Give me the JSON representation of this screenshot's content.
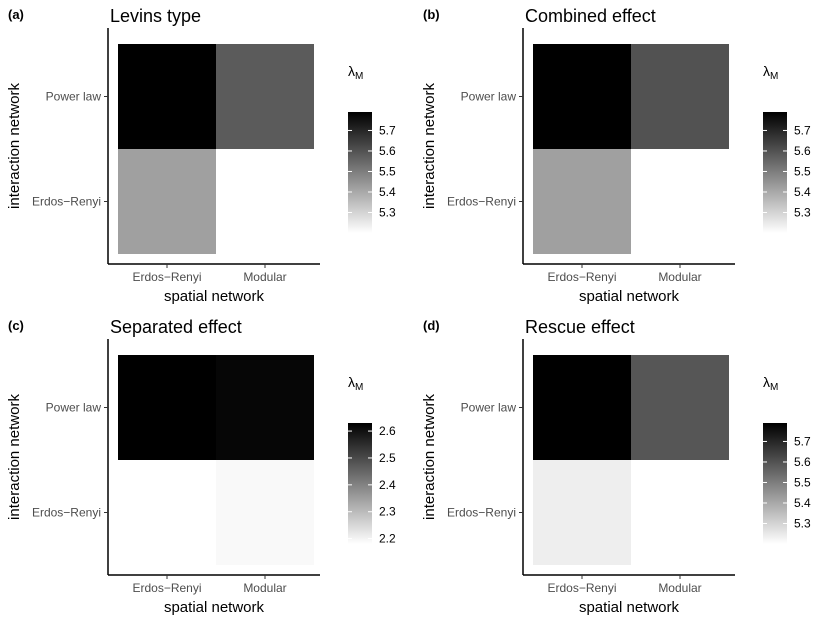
{
  "figure": {
    "colors": {
      "low": "#ffffff",
      "high": "#000000",
      "tick_text": "#4d4d4d",
      "axis": "#000000"
    }
  },
  "chart_data": [
    {
      "type": "heatmap",
      "tag": "(a)",
      "title": "Levins type",
      "xlabel": "spatial network",
      "ylabel": "interaction network",
      "x": [
        "Erdos−Renyi",
        "Modular"
      ],
      "y": [
        "Erdos−Renyi",
        "Power law"
      ],
      "values": [
        [
          5.42,
          5.2
        ],
        [
          5.79,
          5.58
        ]
      ],
      "legend": {
        "title": "λ",
        "title_sub": "M",
        "ticks": [
          "5.7",
          "5.6",
          "5.5",
          "5.4",
          "5.3"
        ],
        "tick_values": [
          5.7,
          5.6,
          5.5,
          5.4,
          5.3
        ],
        "range": [
          5.2,
          5.79
        ]
      }
    },
    {
      "type": "heatmap",
      "tag": "(b)",
      "title": "Combined effect",
      "xlabel": "spatial network",
      "ylabel": "interaction network",
      "x": [
        "Erdos−Renyi",
        "Modular"
      ],
      "y": [
        "Erdos−Renyi",
        "Power law"
      ],
      "values": [
        [
          5.42,
          5.2
        ],
        [
          5.79,
          5.6
        ]
      ],
      "legend": {
        "title": "λ",
        "title_sub": "M",
        "ticks": [
          "5.7",
          "5.6",
          "5.5",
          "5.4",
          "5.3"
        ],
        "tick_values": [
          5.7,
          5.6,
          5.5,
          5.4,
          5.3
        ],
        "range": [
          5.2,
          5.79
        ]
      }
    },
    {
      "type": "heatmap",
      "tag": "(c)",
      "title": "Separated effect",
      "xlabel": "spatial network",
      "ylabel": "interaction network",
      "x": [
        "Erdos−Renyi",
        "Modular"
      ],
      "y": [
        "Erdos−Renyi",
        "Power law"
      ],
      "values": [
        [
          2.18,
          2.19
        ],
        [
          2.63,
          2.62
        ]
      ],
      "legend": {
        "title": "λ",
        "title_sub": "M",
        "ticks": [
          "2.6",
          "2.5",
          "2.4",
          "2.3",
          "2.2"
        ],
        "tick_values": [
          2.6,
          2.5,
          2.4,
          2.3,
          2.2
        ],
        "range": [
          2.18,
          2.63
        ]
      }
    },
    {
      "type": "heatmap",
      "tag": "(d)",
      "title": "Rescue effect",
      "xlabel": "spatial network",
      "ylabel": "interaction network",
      "x": [
        "Erdos−Renyi",
        "Modular"
      ],
      "y": [
        "Erdos−Renyi",
        "Power law"
      ],
      "values": [
        [
          5.24,
          5.2
        ],
        [
          5.79,
          5.59
        ]
      ],
      "legend": {
        "title": "λ",
        "title_sub": "M",
        "ticks": [
          "5.7",
          "5.6",
          "5.5",
          "5.4",
          "5.3"
        ],
        "tick_values": [
          5.7,
          5.6,
          5.5,
          5.4,
          5.3
        ],
        "range": [
          5.2,
          5.79
        ]
      }
    }
  ]
}
